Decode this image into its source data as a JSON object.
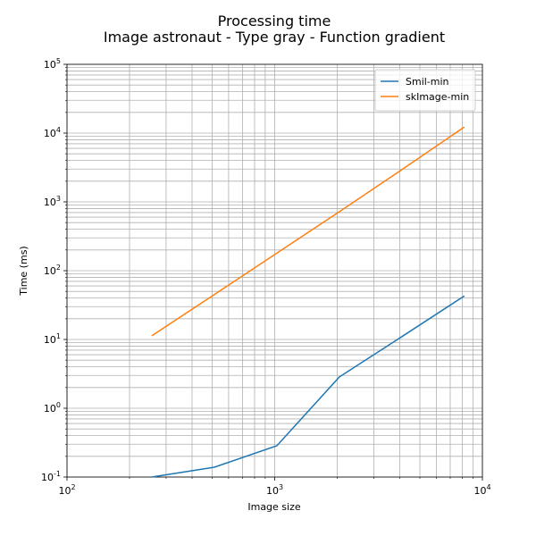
{
  "chart_data": {
    "type": "line",
    "title": "Processing time",
    "subtitle": "Image astronaut - Type gray - Function gradient",
    "x_label": "Image size",
    "y_label": "Time (ms)",
    "x": [
      256,
      512,
      1024,
      2048,
      4096,
      8192
    ],
    "series": [
      {
        "name": "Smil-min",
        "color": "#1f77b4",
        "values": [
          0.1,
          0.139,
          0.285,
          2.85,
          11,
          43
        ]
      },
      {
        "name": "skImage-min",
        "color": "#ff7f0e",
        "values": [
          11.3,
          45,
          180,
          720,
          2950,
          12300
        ]
      }
    ],
    "log_x": true,
    "log_y": true,
    "xlim": [
      100,
      10000
    ],
    "xticks": [
      {
        "value": 100,
        "label": "10^2"
      },
      {
        "value": 1000,
        "label": "10^3"
      },
      {
        "value": 10000,
        "label": "10^4"
      }
    ],
    "ylim": [
      0.1,
      100000
    ],
    "yticks": [
      {
        "value": 0.1,
        "label": "10^-1"
      },
      {
        "value": 1,
        "label": "10^0"
      },
      {
        "value": 10,
        "label": "10^1"
      },
      {
        "value": 100,
        "label": "10^2"
      },
      {
        "value": 1000,
        "label": "10^3"
      },
      {
        "value": 10000,
        "label": "10^4"
      },
      {
        "value": 100000,
        "label": "10^5"
      }
    ],
    "grid": true,
    "minor_grid": true,
    "legend": "upper right"
  }
}
